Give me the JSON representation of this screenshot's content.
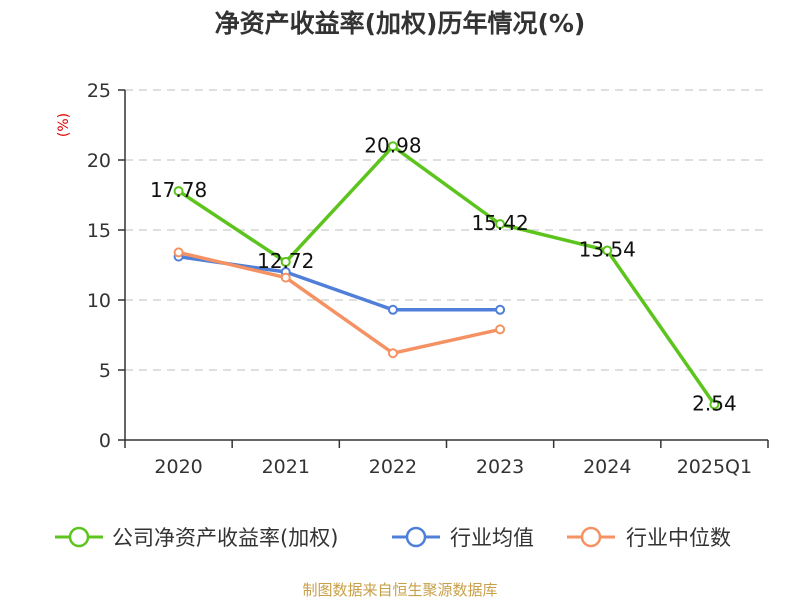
{
  "title": "净资产收益率(加权)历年情况(%)",
  "source": "制图数据来自恒生聚源数据库",
  "chart_data": {
    "type": "line",
    "title": "净资产收益率(加权)历年情况(%)",
    "ylabel": "(%)",
    "xlabel": "",
    "ylim": [
      0,
      25
    ],
    "yticks": [
      0,
      5,
      10,
      15,
      20,
      25
    ],
    "categories": [
      "2020",
      "2021",
      "2022",
      "2023",
      "2024",
      "2025Q1"
    ],
    "series": [
      {
        "name": "公司净资产收益率(加权)",
        "color": "#5cc41d",
        "values": [
          17.78,
          12.72,
          20.98,
          15.42,
          13.54,
          2.54
        ],
        "labels": [
          "17.78",
          "12.72",
          "20.98",
          "15.42",
          "13.54",
          "2.54"
        ]
      },
      {
        "name": "行业均值",
        "color": "#4f7fd9",
        "values": [
          13.1,
          12.0,
          9.3,
          9.3,
          null,
          null
        ]
      },
      {
        "name": "行业中位数",
        "color": "#f59263",
        "values": [
          13.4,
          11.6,
          6.2,
          7.9,
          null,
          null
        ]
      }
    ],
    "grid": true,
    "legend": "bottom"
  }
}
